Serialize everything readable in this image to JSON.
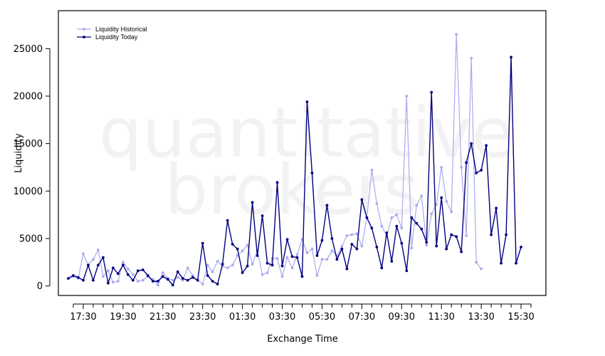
{
  "watermark": {
    "line1": "quantitative",
    "line2": "brokers"
  },
  "chart_data": {
    "type": "line",
    "title": "",
    "xlabel": "Exchange Time",
    "ylabel": "Liquidity",
    "ylim": [
      -1000,
      29000
    ],
    "yticks": [
      0,
      5000,
      10000,
      15000,
      20000,
      25000
    ],
    "x_tick_labels": [
      "17:30",
      "19:30",
      "21:30",
      "23:30",
      "01:30",
      "03:30",
      "05:30",
      "07:30",
      "09:30",
      "11:30",
      "13:30",
      "15:30"
    ],
    "x_tick_positions": [
      3,
      11,
      19,
      27,
      35,
      43,
      51,
      59,
      67,
      75,
      83,
      91
    ],
    "x_major_tick_step": 4,
    "x_range": [
      -2,
      96
    ],
    "legend": {
      "placement": "top-left"
    },
    "series": [
      {
        "name": "Liquidity Historical",
        "color": "#aaaaee",
        "values": [
          800,
          1000,
          800,
          3400,
          2200,
          2800,
          3800,
          1000,
          1600,
          400,
          500,
          2500,
          1800,
          1200,
          500,
          600,
          1000,
          700,
          100,
          1400,
          800,
          600,
          900,
          600,
          1900,
          1100,
          600,
          200,
          2200,
          1500,
          2600,
          2100,
          1900,
          2200,
          3200,
          3700,
          4300,
          2300,
          3700,
          1200,
          1400,
          2900,
          2900,
          1000,
          3000,
          1900,
          3300,
          4900,
          3500,
          3900,
          1100,
          2800,
          2800,
          3700,
          3200,
          4200,
          5300,
          5400,
          5500,
          4200,
          7200,
          12200,
          8700,
          6300,
          5300,
          7200,
          7500,
          6100,
          20000,
          4000,
          8500,
          9500,
          4300,
          7600,
          8600,
          12500,
          8900,
          7800,
          26500,
          12500,
          5300,
          24000,
          2500,
          1800
        ]
      },
      {
        "name": "Liquidity Today",
        "color": "#000080",
        "values": [
          800,
          1100,
          900,
          600,
          2200,
          600,
          2200,
          3000,
          300,
          1900,
          1300,
          2200,
          1200,
          600,
          1600,
          1700,
          1100,
          500,
          500,
          1000,
          700,
          100,
          1500,
          800,
          600,
          900,
          600,
          4500,
          1100,
          500,
          200,
          2300,
          6900,
          4400,
          3900,
          1400,
          2100,
          8800,
          3200,
          7400,
          2400,
          2200,
          10900,
          2100,
          4900,
          3100,
          3000,
          1000,
          19400,
          11900,
          3200,
          4800,
          8500,
          5000,
          2800,
          3900,
          1800,
          4400,
          3900,
          9100,
          7200,
          6100,
          4100,
          1900,
          5600,
          2600,
          6300,
          4500,
          1600,
          7200,
          6600,
          6000,
          4600,
          20400,
          4200,
          9300,
          3900,
          5400,
          5200,
          3600,
          13000,
          15000,
          11900,
          12200,
          14800,
          5400,
          8200,
          2400,
          5400,
          24100,
          2400,
          4100
        ]
      }
    ]
  }
}
